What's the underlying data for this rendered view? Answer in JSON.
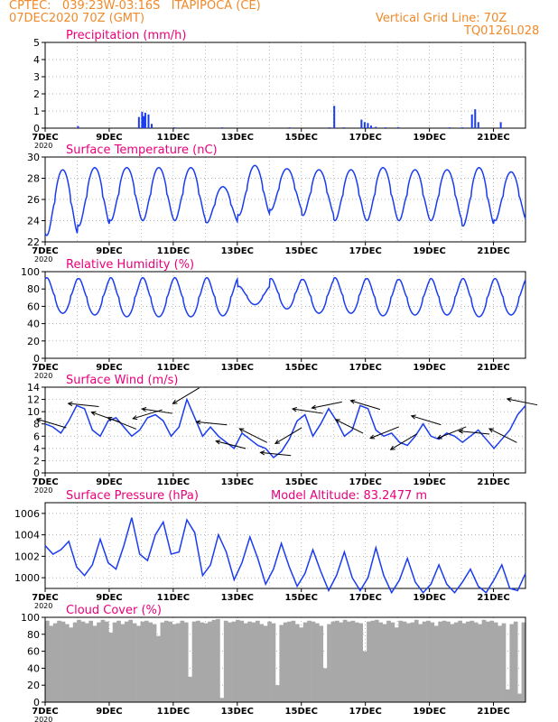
{
  "header": {
    "station": "CPTEC:   039:23W-03:16S   ITAPIPOCA (CE)",
    "run": "07DEC2020 70Z (GMT)",
    "grid_line": "Vertical Grid Line: 70Z",
    "code": "TQ0126L028"
  },
  "colors": {
    "header": "#f08a2a",
    "title": "#e8007a",
    "series": "#1a3cf0",
    "cloud": "#a8a8a8"
  },
  "panels": [
    {
      "key": "precip",
      "title": "Precipitation (mm/h)",
      "extra": "",
      "y_ticks": [
        "0",
        "1",
        "2",
        "3",
        "4",
        "5"
      ],
      "ylim": [
        0,
        5
      ]
    },
    {
      "key": "temp",
      "title": "Surface Temperature (nC)",
      "extra": "",
      "y_ticks": [
        "22",
        "24",
        "26",
        "28",
        "30"
      ],
      "ylim": [
        22,
        30
      ]
    },
    {
      "key": "rh",
      "title": "Relative Humidity (%)",
      "extra": "",
      "y_ticks": [
        "0",
        "20",
        "40",
        "60",
        "80",
        "100"
      ],
      "ylim": [
        0,
        100
      ]
    },
    {
      "key": "wind",
      "title": "Surface Wind (m/s)",
      "extra": "",
      "y_ticks": [
        "0",
        "2",
        "4",
        "6",
        "8",
        "10",
        "12",
        "14"
      ],
      "ylim": [
        0,
        14
      ]
    },
    {
      "key": "press",
      "title": "Surface Pressure (hPa)",
      "extra": "Model Altitude: 83.2477 m",
      "y_ticks": [
        "1000",
        "1002",
        "1004",
        "1006"
      ],
      "ylim": [
        999,
        1007
      ]
    },
    {
      "key": "cloud",
      "title": "Cloud Cover (%)",
      "extra": "",
      "y_ticks": [
        "0",
        "20",
        "40",
        "60",
        "80",
        "100"
      ],
      "ylim": [
        0,
        100
      ]
    }
  ],
  "x_ticks": [
    "7DEC",
    "9DEC",
    "11DEC",
    "13DEC",
    "15DEC",
    "17DEC",
    "19DEC",
    "21DEC"
  ],
  "year_label": "2020",
  "chart_data": [
    {
      "type": "bar",
      "title": "Precipitation (mm/h)",
      "ylabel": "mm/h",
      "ylim": [
        0,
        5
      ],
      "x_range_days": [
        7,
        22
      ],
      "bars": [
        [
          8,
          0.12
        ],
        [
          9.9,
          0.65
        ],
        [
          10,
          0.95
        ],
        [
          10.05,
          0.7
        ],
        [
          10.1,
          0.9
        ],
        [
          10.2,
          0.8
        ],
        [
          10.3,
          0.25
        ],
        [
          11,
          0.05
        ],
        [
          12.5,
          0.05
        ],
        [
          14.6,
          0.05
        ],
        [
          15.85,
          0.05
        ],
        [
          16,
          1.3
        ],
        [
          16.3,
          0.05
        ],
        [
          16.85,
          0.5
        ],
        [
          16.95,
          0.35
        ],
        [
          17.05,
          0.3
        ],
        [
          17.15,
          0.15
        ],
        [
          17.3,
          0.08
        ],
        [
          17.6,
          0.05
        ],
        [
          18,
          0.06
        ],
        [
          19.6,
          0.05
        ],
        [
          20,
          0.05
        ],
        [
          20.3,
          0.8
        ],
        [
          20.4,
          1.1
        ],
        [
          20.5,
          0.35
        ],
        [
          21.2,
          0.35
        ]
      ]
    },
    {
      "type": "line",
      "title": "Surface Temperature (nC)",
      "ylabel": "nC",
      "ylim": [
        22,
        30
      ],
      "x_range_days": [
        7,
        22
      ],
      "daily_min": [
        22.6,
        23.5,
        24.0,
        24.0,
        24.0,
        23.8,
        24.5,
        25.0,
        24.5,
        24.0,
        24.0,
        24.0,
        24.0,
        23.5,
        24.0
      ],
      "daily_max": [
        28.8,
        29.0,
        29.0,
        29.0,
        29.0,
        27.2,
        29.2,
        28.9,
        28.8,
        28.8,
        29.0,
        28.8,
        28.8,
        29.0,
        28.6
      ]
    },
    {
      "type": "line",
      "title": "Relative Humidity (%)",
      "ylabel": "%",
      "ylim": [
        0,
        100
      ],
      "x_range_days": [
        7,
        22
      ],
      "daily_min": [
        52,
        50,
        48,
        48,
        48,
        49,
        62,
        57,
        52,
        52,
        49,
        50,
        50,
        48,
        50
      ],
      "daily_max": [
        93,
        92,
        93,
        93,
        93,
        93,
        83,
        92,
        91,
        93,
        92,
        91,
        92,
        92,
        92
      ]
    },
    {
      "type": "line",
      "title": "Surface Wind (m/s)",
      "ylabel": "m/s",
      "ylim": [
        0,
        14
      ],
      "x_range_days": [
        7,
        22
      ],
      "values": [
        8.0,
        7.5,
        6.5,
        8.5,
        11.0,
        10.5,
        7.0,
        6.0,
        8.5,
        9.0,
        7.5,
        6.0,
        7.0,
        9.0,
        9.5,
        8.5,
        6.0,
        7.5,
        12.0,
        9.0,
        6.0,
        7.5,
        6.0,
        5.0,
        4.0,
        6.5,
        5.5,
        4.5,
        4.0,
        2.5,
        3.5,
        5.5,
        8.5,
        9.5,
        6.0,
        8.0,
        10.5,
        8.5,
        6.0,
        7.0,
        11.0,
        10.5,
        7.0,
        6.0,
        6.5,
        5.0,
        4.5,
        6.0,
        8.0,
        6.0,
        5.5,
        6.5,
        6.0,
        5.0,
        6.0,
        7.0,
        5.5,
        4.0,
        5.5,
        7.0,
        9.5,
        11.0
      ],
      "arrows": [
        {
          "day": 7.2,
          "u": -1,
          "v": 0.3
        },
        {
          "day": 8.2,
          "u": -1,
          "v": 0.1
        },
        {
          "day": 8.9,
          "u": -1,
          "v": 0.35
        },
        {
          "day": 9.4,
          "u": -1,
          "v": 0.4
        },
        {
          "day": 10.2,
          "u": -1,
          "v": -0.3
        },
        {
          "day": 10.5,
          "u": -1,
          "v": 0.15
        },
        {
          "day": 11.4,
          "u": -1,
          "v": -0.6
        },
        {
          "day": 12.2,
          "u": -1,
          "v": 0.1
        },
        {
          "day": 12.8,
          "u": -1,
          "v": 0.25
        },
        {
          "day": 13.5,
          "u": -1,
          "v": 0.5
        },
        {
          "day": 14.2,
          "u": -1,
          "v": 0.1
        },
        {
          "day": 14.6,
          "u": -1,
          "v": -0.6
        },
        {
          "day": 15.2,
          "u": -1,
          "v": 0.15
        },
        {
          "day": 15.8,
          "u": -1,
          "v": -0.2
        },
        {
          "day": 16.5,
          "u": -1,
          "v": 0.5
        },
        {
          "day": 17.0,
          "u": -1,
          "v": 0.3
        },
        {
          "day": 17.6,
          "u": -1,
          "v": -0.4
        },
        {
          "day": 18.2,
          "u": -1,
          "v": -0.6
        },
        {
          "day": 18.9,
          "u": -1,
          "v": 0.3
        },
        {
          "day": 19.7,
          "u": -1,
          "v": -0.4
        },
        {
          "day": 20.4,
          "u": -1,
          "v": 0.1
        },
        {
          "day": 21.3,
          "u": -1,
          "v": 0.5
        },
        {
          "day": 21.9,
          "u": -1,
          "v": 0.2
        }
      ]
    },
    {
      "type": "line",
      "title": "Surface Pressure (hPa)",
      "ylabel": "hPa",
      "ylim": [
        999,
        1007
      ],
      "x_range_days": [
        7,
        22
      ],
      "values": [
        1003.0,
        1002.2,
        1002.6,
        1003.4,
        1001.0,
        1000.2,
        1001.2,
        1003.6,
        1001.4,
        1000.8,
        1003.0,
        1005.6,
        1002.2,
        1001.6,
        1004.0,
        1005.2,
        1002.2,
        1002.4,
        1005.4,
        1004.2,
        1000.2,
        1001.2,
        1004.0,
        1002.4,
        999.8,
        1001.4,
        1003.8,
        1001.8,
        999.4,
        1000.8,
        1003.2,
        1001.0,
        999.2,
        1000.4,
        1002.6,
        1000.6,
        998.8,
        1000.2,
        1002.4,
        1000.0,
        998.8,
        1000.0,
        1002.8,
        1000.2,
        998.6,
        999.8,
        1001.8,
        999.6,
        998.6,
        999.4,
        1001.2,
        999.4,
        998.6,
        999.6,
        1000.8,
        999.2,
        998.6,
        999.8,
        1001.2,
        999.0,
        998.8,
        1000.4
      ],
      "annotation": "Model Altitude: 83.2477 m"
    },
    {
      "type": "area",
      "title": "Cloud Cover (%)",
      "ylabel": "%",
      "ylim": [
        0,
        100
      ],
      "x_range_days": [
        7,
        22
      ],
      "values": [
        96,
        90,
        93,
        96,
        95,
        92,
        88,
        94,
        97,
        95,
        93,
        96,
        90,
        94,
        97,
        95,
        82,
        94,
        96,
        92,
        95,
        97,
        93,
        90,
        95,
        96,
        94,
        92,
        78,
        94,
        96,
        95,
        92,
        93,
        96,
        94,
        30,
        95,
        96,
        94,
        93,
        95,
        97,
        98,
        5,
        96,
        94,
        95,
        97,
        96,
        93,
        95,
        94,
        96,
        92,
        90,
        95,
        93,
        20,
        91,
        94,
        95,
        96,
        92,
        88,
        94,
        96,
        95,
        93,
        90,
        40,
        92,
        95,
        96,
        94,
        97,
        95,
        96,
        94,
        93,
        60,
        95,
        96,
        97,
        94,
        92,
        96,
        94,
        88,
        96,
        95,
        93,
        94,
        97,
        92,
        95,
        96,
        94,
        90,
        95,
        96,
        95,
        92,
        94,
        96,
        93,
        95,
        96,
        94,
        92,
        97,
        95,
        96,
        94,
        90,
        93,
        15,
        92,
        95,
        10,
        94
      ]
    }
  ]
}
